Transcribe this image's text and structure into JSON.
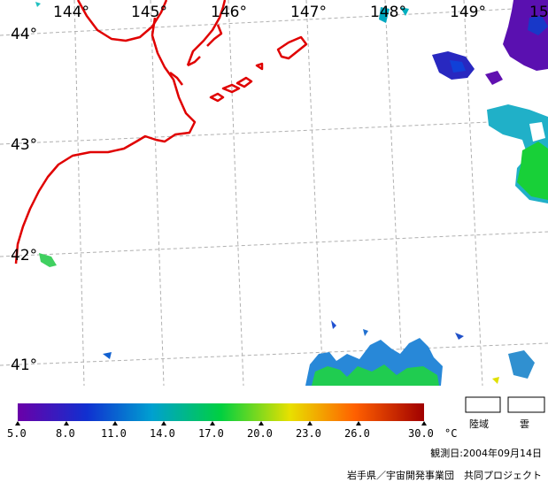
{
  "map": {
    "longitude_labels": [
      "144°",
      "145°",
      "146°",
      "147°",
      "148°",
      "149°",
      "15"
    ],
    "latitude_labels": [
      "44°",
      "43°",
      "42°",
      "41°"
    ]
  },
  "colorbar": {
    "ticks": [
      "5.0",
      "8.0",
      "11.0",
      "14.0",
      "17.0",
      "20.0",
      "23.0",
      "26.0",
      "30.0"
    ],
    "unit": "°C",
    "range": [
      5.0,
      30.0
    ],
    "colors": [
      "#6a00a8",
      "#1030d0",
      "#00a0d0",
      "#00d040",
      "#e8e000",
      "#ff6000",
      "#a00000"
    ]
  },
  "legend": {
    "land_label": "陸域",
    "cloud_label": "雲"
  },
  "footer": {
    "observation_date": "観測日:2004年09月14日",
    "credit": "岩手県／宇宙開発事業団　共同プロジェクト"
  }
}
